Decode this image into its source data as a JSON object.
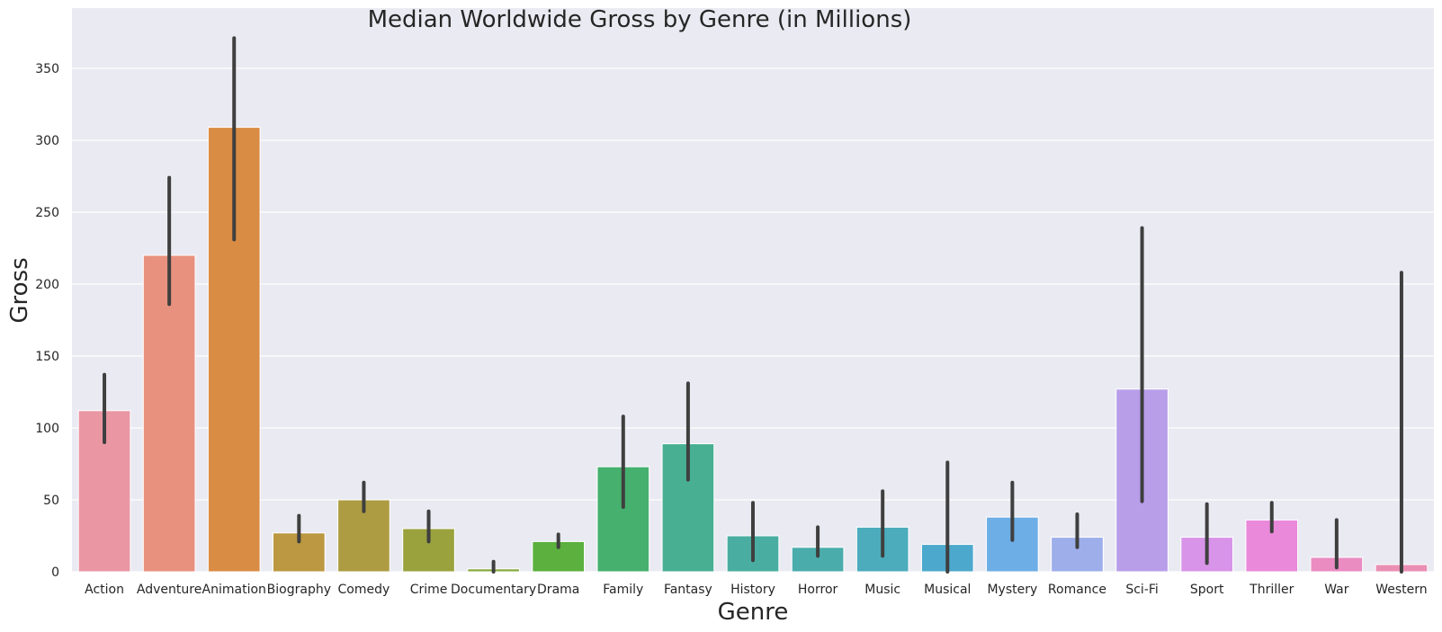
{
  "chart_data": {
    "type": "bar",
    "title": "Median Worldwide Gross by Genre (in Millions)",
    "xlabel": "Genre",
    "ylabel": "Gross",
    "ylim": [
      0,
      378
    ],
    "yticks": [
      0,
      50,
      100,
      150,
      200,
      250,
      300,
      350
    ],
    "grid": true,
    "categories": [
      "Action",
      "Adventure",
      "Animation",
      "Biography",
      "Comedy",
      "Crime",
      "Documentary",
      "Drama",
      "Family",
      "Fantasy",
      "History",
      "Horror",
      "Music",
      "Musical",
      "Mystery",
      "Romance",
      "Sci-Fi",
      "Sport",
      "Thriller",
      "War",
      "Western"
    ],
    "values": [
      112,
      220,
      309,
      27,
      50,
      30,
      2,
      21,
      73,
      89,
      25,
      17,
      31,
      19,
      38,
      24,
      127,
      24,
      36,
      10,
      5
    ],
    "error_low": [
      90,
      186,
      231,
      21,
      42,
      21,
      0,
      17,
      45,
      64,
      8,
      11,
      11,
      0,
      22,
      17,
      49,
      6,
      28,
      3,
      0
    ],
    "error_high": [
      137,
      274,
      371,
      39,
      62,
      42,
      7,
      26,
      108,
      131,
      48,
      31,
      56,
      76,
      62,
      40,
      239,
      47,
      48,
      36,
      208
    ],
    "colors": [
      "#ea96a3",
      "#e8917f",
      "#d98c44",
      "#bb9841",
      "#ad9c42",
      "#9aa23e",
      "#85a83d",
      "#5bb03e",
      "#46b06e",
      "#48af92",
      "#49aea1",
      "#4bacac",
      "#4cacbc",
      "#4da8cd",
      "#6daee6",
      "#9daeea",
      "#b89ee9",
      "#d894e8",
      "#ea89da",
      "#ea8bc1",
      "#ea8fb3"
    ]
  }
}
